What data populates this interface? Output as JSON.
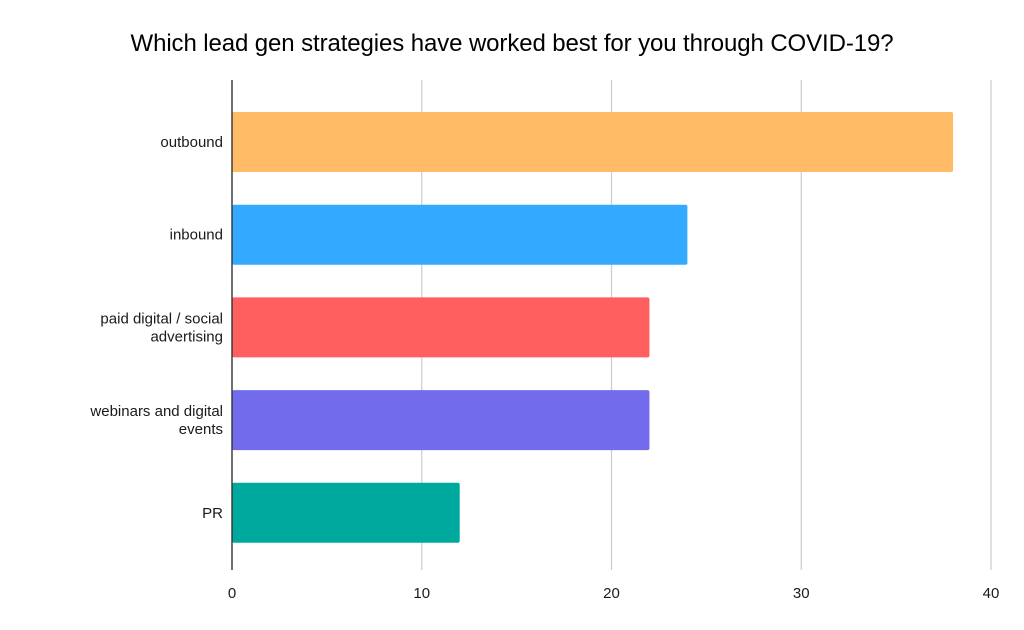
{
  "chart_data": {
    "type": "bar",
    "orientation": "horizontal",
    "title": "Which lead gen strategies have worked best for you through COVID-19?",
    "categories": [
      [
        "outbound"
      ],
      [
        "inbound"
      ],
      [
        "paid digital / social",
        "advertising"
      ],
      [
        "webinars and digital",
        "events"
      ],
      [
        "PR"
      ]
    ],
    "values": [
      38,
      24,
      22,
      22,
      12
    ],
    "colors": [
      "#ffbb66",
      "#33aaff",
      "#ff5f5f",
      "#726ced",
      "#00a99d"
    ],
    "xlim": [
      0,
      40
    ],
    "xticks": [
      0,
      10,
      20,
      30,
      40
    ],
    "xlabel": "",
    "ylabel": "",
    "grid": true,
    "legend": "none"
  }
}
